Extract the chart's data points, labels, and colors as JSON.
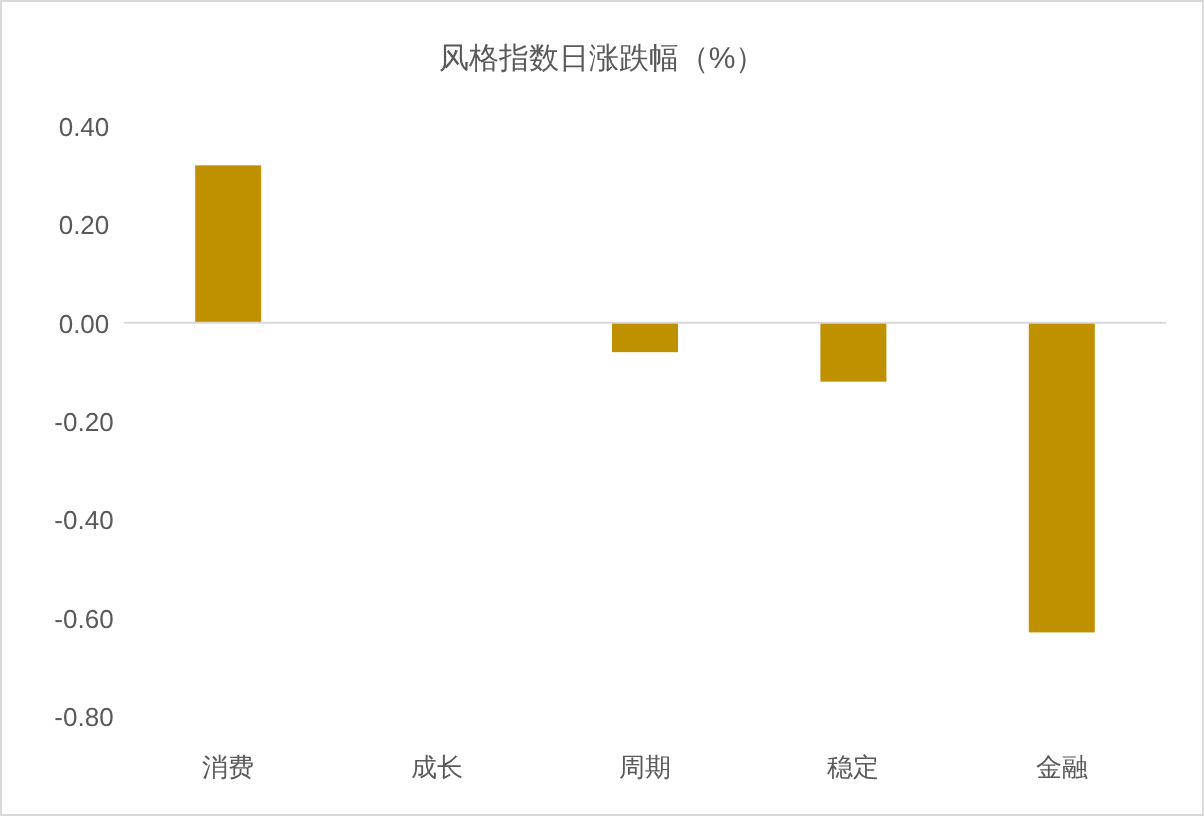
{
  "chart_data": {
    "type": "bar",
    "title": "风格指数日涨跌幅（%）",
    "categories": [
      "消费",
      "成长",
      "周期",
      "稳定",
      "金融"
    ],
    "values": [
      0.32,
      0,
      -0.06,
      -0.12,
      -0.63
    ],
    "color": "#bf9000",
    "ylim": [
      -0.8,
      0.4
    ],
    "yticks": [
      {
        "value": -0.8,
        "label": "-0.80"
      },
      {
        "value": -0.6,
        "label": "-0.60"
      },
      {
        "value": -0.4,
        "label": "-0.40"
      },
      {
        "value": -0.2,
        "label": "-0.20"
      },
      {
        "value": 0,
        "label": "0.00"
      },
      {
        "value": 0.2,
        "label": "0.20"
      },
      {
        "value": 0.4,
        "label": "0.40"
      }
    ]
  }
}
